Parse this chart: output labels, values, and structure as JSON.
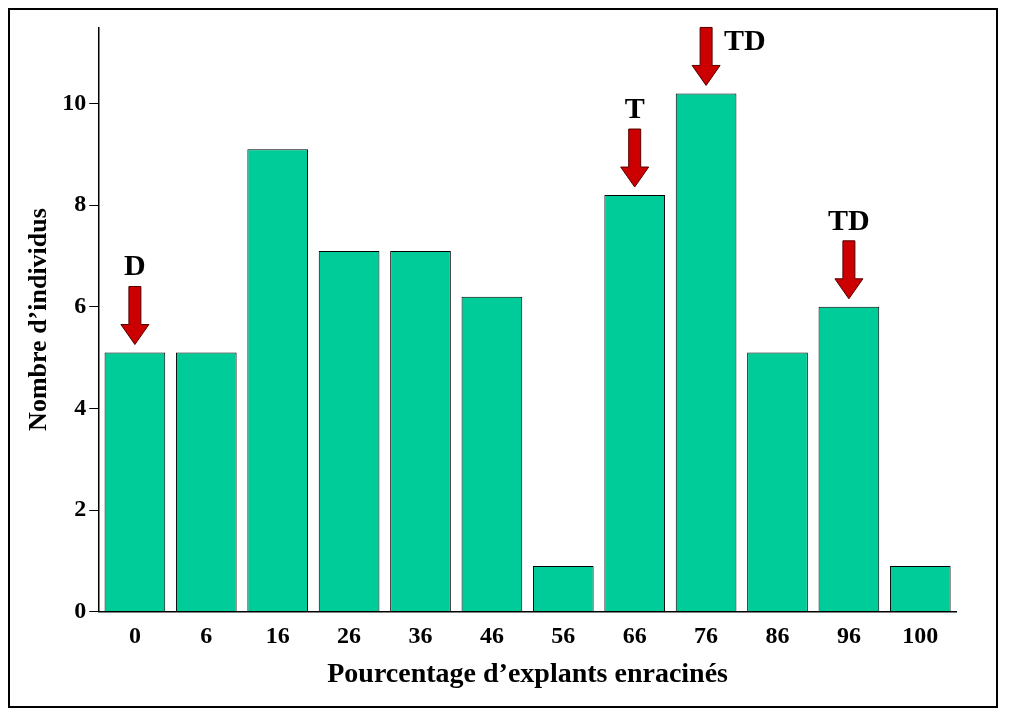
{
  "chart_data": {
    "type": "bar",
    "xlabel": "Pourcentage d’explants enracinés",
    "ylabel": "Nombre d’individus",
    "categories": [
      "0",
      "6",
      "16",
      "26",
      "36",
      "46",
      "56",
      "66",
      "76",
      "86",
      "96",
      "100"
    ],
    "values": [
      5.1,
      5.1,
      9.1,
      7.1,
      7.1,
      6.2,
      0.9,
      8.2,
      10.2,
      5.1,
      6.0,
      0.9
    ],
    "color": "#00cc99",
    "ylim": [
      0,
      11.5
    ],
    "yticks": [
      0,
      2,
      4,
      6,
      8,
      10
    ],
    "grid": false,
    "legend": false,
    "annotations": [
      {
        "text": "D",
        "x": "0",
        "y": 5.1
      },
      {
        "text": "T",
        "x": "66",
        "y": 8.2
      },
      {
        "text": "TD",
        "x": "76",
        "y": 10.2
      },
      {
        "text": "TD",
        "x": "96",
        "y": 6.0
      }
    ]
  }
}
